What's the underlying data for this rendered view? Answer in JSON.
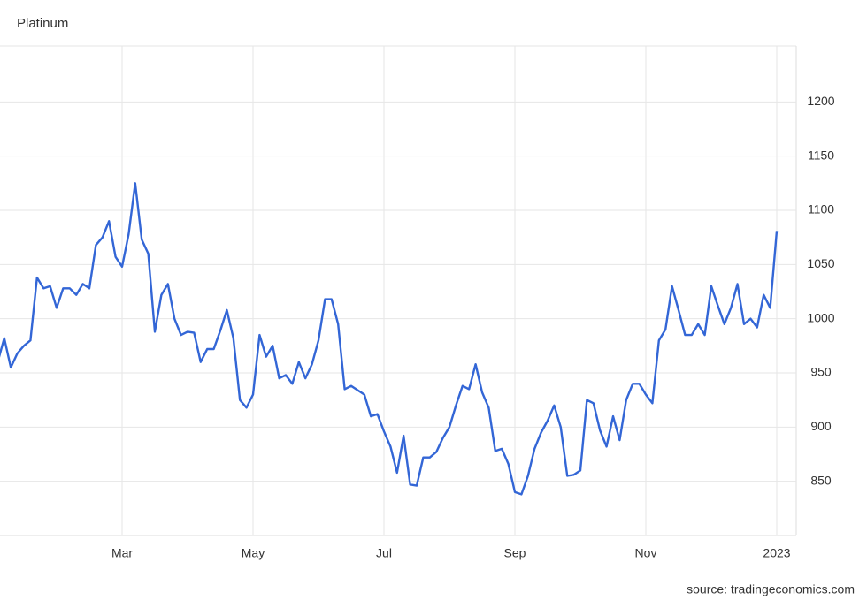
{
  "chart_data": {
    "type": "line",
    "title": "Platinum",
    "source": "source: tradingeconomics.com",
    "categories": [
      null,
      null,
      null,
      null,
      null,
      null,
      null,
      null,
      null,
      null,
      null,
      null,
      null,
      null,
      null,
      null,
      null,
      null,
      null,
      "Mar",
      null,
      null,
      null,
      null,
      null,
      null,
      null,
      null,
      null,
      null,
      null,
      null,
      null,
      null,
      null,
      null,
      null,
      null,
      null,
      "May",
      null,
      null,
      null,
      null,
      null,
      null,
      null,
      null,
      null,
      null,
      null,
      null,
      null,
      null,
      null,
      null,
      null,
      null,
      null,
      "Jul",
      null,
      null,
      null,
      null,
      null,
      null,
      null,
      null,
      null,
      null,
      null,
      null,
      null,
      null,
      null,
      null,
      null,
      null,
      null,
      "Sep",
      null,
      null,
      null,
      null,
      null,
      null,
      null,
      null,
      null,
      null,
      null,
      null,
      null,
      null,
      null,
      null,
      null,
      null,
      null,
      "Nov",
      null,
      null,
      null,
      null,
      null,
      null,
      null,
      null,
      null,
      null,
      null,
      null,
      null,
      null,
      null,
      null,
      null,
      null,
      null,
      "2023"
    ],
    "values": [
      960,
      982,
      955,
      968,
      975,
      980,
      1038,
      1028,
      1030,
      1010,
      1028,
      1028,
      1022,
      1032,
      1028,
      1068,
      1075,
      1090,
      1057,
      1048,
      1078,
      1125,
      1073,
      1060,
      988,
      1022,
      1032,
      1000,
      985,
      988,
      987,
      960,
      972,
      972,
      989,
      1008,
      982,
      925,
      918,
      930,
      985,
      965,
      975,
      945,
      948,
      940,
      960,
      945,
      958,
      980,
      1018,
      1018,
      995,
      935,
      938,
      934,
      930,
      910,
      912,
      896,
      882,
      858,
      892,
      847,
      846,
      872,
      872,
      877,
      890,
      900,
      920,
      938,
      935,
      958,
      932,
      918,
      878,
      880,
      866,
      840,
      838,
      855,
      880,
      895,
      906,
      920,
      900,
      855,
      856,
      860,
      925,
      922,
      897,
      882,
      910,
      888,
      925,
      940,
      940,
      930,
      922,
      980,
      990,
      1030,
      1008,
      985,
      985,
      995,
      985,
      1030,
      1012,
      995,
      1010,
      1032,
      995,
      1000,
      992,
      1022,
      1010,
      1081
    ],
    "color": "#3366d6",
    "ylim": [
      800,
      1250
    ],
    "yticks": [
      850,
      900,
      950,
      1000,
      1050,
      1100,
      1150,
      1200
    ],
    "grid": true
  }
}
